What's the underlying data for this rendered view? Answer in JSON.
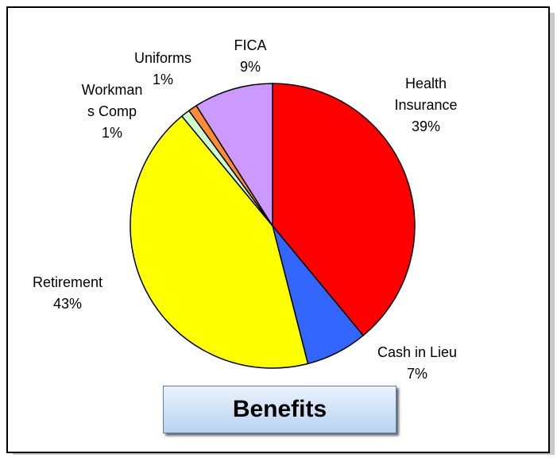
{
  "chart_data": {
    "type": "pie",
    "title": "Benefits",
    "categories": [
      "Health Insurance",
      "Cash in Lieu",
      "Retirement",
      "Workmans Comp",
      "Uniforms",
      "FICA"
    ],
    "values": [
      39,
      7,
      43,
      1,
      1,
      9
    ],
    "value_labels": [
      "39%",
      "7%",
      "43%",
      "1%",
      "1%",
      "9%"
    ],
    "colors": [
      "#ff0000",
      "#3366ff",
      "#ffff00",
      "#ccffcc",
      "#ff8c33",
      "#cc99ff"
    ]
  }
}
